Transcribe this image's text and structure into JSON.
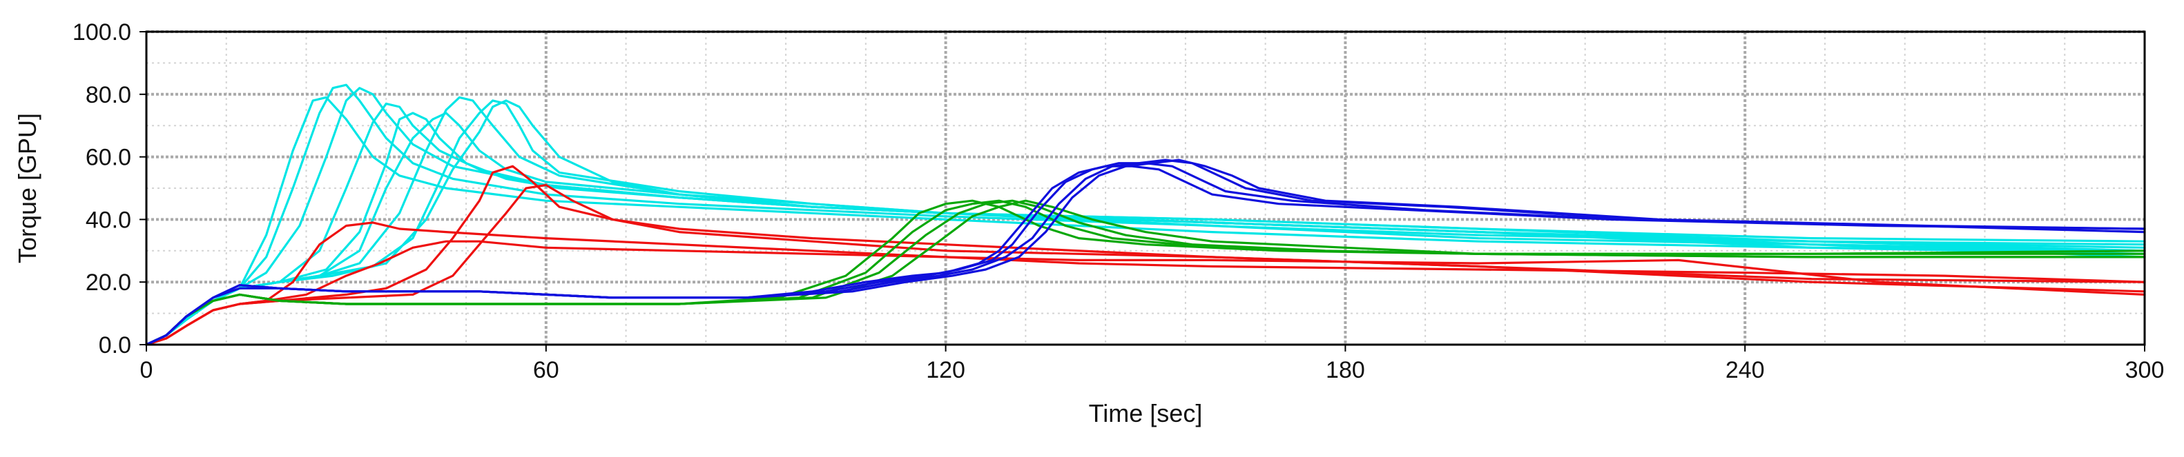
{
  "chart_data": {
    "type": "line",
    "xlabel": "Time [sec]",
    "ylabel": "Torque [GPU]",
    "xlim": [
      0,
      300
    ],
    "ylim": [
      0,
      100
    ],
    "xticks": [
      0,
      60,
      120,
      180,
      240,
      300
    ],
    "yticks": [
      0,
      20,
      40,
      60,
      80,
      100
    ],
    "xtick_labels": [
      "0",
      "60",
      "120",
      "180",
      "240",
      "300"
    ],
    "ytick_labels": [
      "0.0",
      "20.0",
      "40.0",
      "60.0",
      "80.0",
      "100.0"
    ],
    "grid": true,
    "legend": "none",
    "colors": {
      "cyan": "#00e5e5",
      "red": "#ee1111",
      "green": "#0aa80a",
      "blue": "#1010dd",
      "grid_major": "#a9a9a9",
      "grid_minor": "#d4d4d4",
      "frame": "#000000"
    },
    "series": [
      {
        "color": "cyan",
        "x": [
          0,
          3,
          6,
          10,
          14,
          18,
          22,
          25,
          27,
          30,
          34,
          38,
          45,
          60,
          80,
          100,
          120,
          160,
          200,
          250,
          300
        ],
        "y": [
          0,
          3,
          8,
          14,
          18,
          35,
          62,
          78,
          79,
          72,
          60,
          54,
          50,
          46,
          44,
          42,
          40,
          36,
          33,
          31,
          30
        ]
      },
      {
        "color": "cyan",
        "x": [
          0,
          3,
          6,
          10,
          14,
          18,
          22,
          26,
          28,
          30,
          32,
          36,
          40,
          46,
          60,
          80,
          100,
          120,
          160,
          200,
          250,
          300
        ],
        "y": [
          0,
          3,
          8,
          14,
          18,
          28,
          50,
          74,
          82,
          83,
          78,
          66,
          58,
          53,
          48,
          45,
          43,
          41,
          38,
          34,
          32,
          30
        ]
      },
      {
        "color": "cyan",
        "x": [
          0,
          3,
          6,
          10,
          14,
          18,
          23,
          27,
          30,
          32,
          34,
          36,
          40,
          46,
          60,
          80,
          100,
          120,
          160,
          200,
          250,
          300
        ],
        "y": [
          0,
          3,
          8,
          14,
          18,
          23,
          38,
          60,
          78,
          82,
          80,
          74,
          64,
          57,
          51,
          47,
          44,
          42,
          38,
          35,
          33,
          32
        ]
      },
      {
        "color": "cyan",
        "x": [
          0,
          3,
          6,
          10,
          14,
          20,
          26,
          30,
          34,
          36,
          38,
          40,
          44,
          50,
          60,
          80,
          100,
          120,
          160,
          200,
          250,
          300
        ],
        "y": [
          0,
          3,
          8,
          14,
          18,
          20,
          30,
          50,
          71,
          77,
          76,
          70,
          62,
          56,
          51,
          47,
          44,
          42,
          39,
          36,
          33,
          31
        ]
      },
      {
        "color": "cyan",
        "x": [
          0,
          3,
          6,
          10,
          14,
          20,
          27,
          32,
          36,
          38,
          40,
          42,
          44,
          48,
          54,
          62,
          80,
          100,
          120,
          160,
          200,
          250,
          300
        ],
        "y": [
          0,
          3,
          8,
          14,
          18,
          20,
          24,
          36,
          58,
          72,
          74,
          72,
          66,
          58,
          53,
          50,
          47,
          44,
          42,
          39,
          36,
          32,
          30
        ]
      },
      {
        "color": "cyan",
        "x": [
          0,
          3,
          6,
          10,
          14,
          20,
          26,
          32,
          36,
          40,
          43,
          45,
          47,
          50,
          54,
          60,
          80,
          100,
          120,
          160,
          200,
          250,
          300
        ],
        "y": [
          0,
          3,
          8,
          14,
          18,
          20,
          22,
          30,
          50,
          66,
          72,
          74,
          70,
          62,
          56,
          52,
          48,
          44,
          42,
          39,
          36,
          32,
          28
        ]
      },
      {
        "color": "cyan",
        "x": [
          0,
          3,
          6,
          10,
          14,
          20,
          26,
          32,
          38,
          42,
          45,
          47,
          49,
          52,
          56,
          62,
          80,
          100,
          120,
          160,
          200,
          250,
          300
        ],
        "y": [
          0,
          3,
          8,
          14,
          18,
          20,
          22,
          26,
          42,
          62,
          75,
          79,
          78,
          70,
          60,
          54,
          48,
          45,
          42,
          40,
          37,
          33,
          30
        ]
      },
      {
        "color": "cyan",
        "x": [
          0,
          3,
          6,
          10,
          14,
          20,
          26,
          34,
          40,
          44,
          47,
          50,
          52,
          54,
          56,
          58,
          62,
          80,
          100,
          120,
          160,
          200,
          250,
          300
        ],
        "y": [
          0,
          3,
          8,
          14,
          18,
          20,
          22,
          25,
          34,
          52,
          66,
          74,
          78,
          77,
          70,
          62,
          55,
          49,
          45,
          42,
          39,
          36,
          31,
          29
        ]
      },
      {
        "color": "cyan",
        "x": [
          0,
          3,
          6,
          10,
          14,
          20,
          28,
          36,
          42,
          46,
          50,
          52,
          54,
          56,
          58,
          62,
          70,
          80,
          100,
          120,
          160,
          200,
          250,
          300
        ],
        "y": [
          0,
          3,
          8,
          14,
          18,
          20,
          22,
          26,
          40,
          56,
          68,
          76,
          78,
          76,
          70,
          60,
          52,
          48,
          44,
          42,
          40,
          37,
          34,
          33
        ]
      },
      {
        "color": "red",
        "x": [
          0,
          3,
          6,
          10,
          14,
          18,
          22,
          26,
          30,
          34,
          38,
          45,
          60,
          80,
          100,
          120,
          140,
          160,
          200,
          240,
          270,
          300
        ],
        "y": [
          0,
          2,
          6,
          11,
          13,
          14,
          20,
          32,
          38,
          39,
          37,
          36,
          34,
          32,
          30,
          28,
          26,
          25,
          24,
          23,
          22,
          20
        ]
      },
      {
        "color": "red",
        "x": [
          0,
          3,
          6,
          10,
          14,
          18,
          24,
          30,
          35,
          40,
          45,
          50,
          60,
          80,
          100,
          120,
          140,
          160,
          200,
          230,
          260,
          300
        ],
        "y": [
          0,
          2,
          6,
          11,
          13,
          14,
          16,
          22,
          26,
          31,
          33,
          33,
          31,
          30,
          29,
          28,
          27,
          27,
          26,
          27,
          20,
          16
        ]
      },
      {
        "color": "red",
        "x": [
          0,
          3,
          6,
          10,
          14,
          20,
          30,
          36,
          42,
          46,
          50,
          52,
          55,
          58,
          62,
          70,
          80,
          100,
          120,
          160,
          200,
          250,
          300
        ],
        "y": [
          0,
          2,
          6,
          11,
          13,
          14,
          16,
          18,
          24,
          34,
          46,
          55,
          57,
          52,
          44,
          40,
          37,
          34,
          32,
          28,
          25,
          20,
          17
        ]
      },
      {
        "color": "red",
        "x": [
          0,
          3,
          6,
          10,
          14,
          20,
          30,
          40,
          46,
          50,
          54,
          57,
          60,
          64,
          70,
          80,
          100,
          120,
          160,
          200,
          250,
          300
        ],
        "y": [
          0,
          2,
          6,
          11,
          13,
          14,
          15,
          16,
          22,
          32,
          42,
          50,
          51,
          46,
          40,
          36,
          33,
          30,
          28,
          25,
          21,
          20
        ]
      },
      {
        "color": "green",
        "x": [
          0,
          3,
          6,
          10,
          14,
          20,
          30,
          50,
          80,
          95,
          105,
          112,
          116,
          120,
          124,
          128,
          134,
          140,
          150,
          170,
          200,
          250,
          300
        ],
        "y": [
          0,
          3,
          9,
          14,
          16,
          14,
          13,
          13,
          13,
          15,
          22,
          34,
          42,
          45,
          46,
          44,
          38,
          34,
          32,
          30,
          29,
          28,
          28
        ]
      },
      {
        "color": "green",
        "x": [
          0,
          3,
          6,
          10,
          14,
          20,
          30,
          50,
          80,
          98,
          108,
          115,
          120,
          124,
          128,
          132,
          138,
          145,
          155,
          175,
          200,
          250,
          300
        ],
        "y": [
          0,
          3,
          9,
          14,
          16,
          14,
          13,
          13,
          13,
          15,
          23,
          36,
          43,
          45,
          46,
          44,
          38,
          34,
          32,
          30,
          29,
          28,
          28
        ]
      },
      {
        "color": "green",
        "x": [
          0,
          3,
          6,
          10,
          14,
          20,
          30,
          50,
          80,
          100,
          110,
          117,
          122,
          126,
          130,
          134,
          140,
          147,
          157,
          177,
          200,
          250,
          300
        ],
        "y": [
          0,
          3,
          9,
          14,
          16,
          14,
          13,
          13,
          13,
          15,
          23,
          35,
          42,
          45,
          46,
          44,
          39,
          35,
          32,
          30,
          29,
          29,
          29
        ]
      },
      {
        "color": "green",
        "x": [
          0,
          3,
          6,
          10,
          14,
          20,
          30,
          50,
          80,
          102,
          112,
          119,
          124,
          128,
          132,
          136,
          142,
          150,
          160,
          180,
          200,
          250,
          300
        ],
        "y": [
          0,
          3,
          9,
          14,
          16,
          14,
          13,
          13,
          13,
          15,
          22,
          33,
          41,
          44,
          46,
          44,
          40,
          36,
          33,
          31,
          29,
          29,
          30
        ]
      },
      {
        "color": "blue",
        "x": [
          0,
          3,
          6,
          10,
          14,
          20,
          30,
          50,
          70,
          90,
          100,
          108,
          115,
          120,
          125,
          128,
          132,
          136,
          140,
          144,
          148,
          152,
          156,
          160,
          170,
          190,
          220,
          260,
          300
        ],
        "y": [
          0,
          3,
          9,
          15,
          18,
          18,
          17,
          17,
          15,
          15,
          17,
          20,
          22,
          23,
          26,
          30,
          40,
          50,
          55,
          57,
          57,
          56,
          52,
          48,
          45,
          43,
          40,
          38,
          37
        ]
      },
      {
        "color": "blue",
        "x": [
          0,
          3,
          6,
          10,
          14,
          20,
          30,
          50,
          70,
          90,
          102,
          110,
          117,
          122,
          127,
          130,
          134,
          138,
          142,
          146,
          150,
          154,
          158,
          162,
          172,
          192,
          222,
          262,
          300
        ],
        "y": [
          0,
          3,
          9,
          15,
          19,
          18,
          17,
          17,
          15,
          15,
          17,
          20,
          22,
          24,
          27,
          32,
          43,
          52,
          56,
          58,
          58,
          57,
          53,
          49,
          46,
          43,
          40,
          38,
          37
        ]
      },
      {
        "color": "blue",
        "x": [
          0,
          3,
          6,
          10,
          14,
          20,
          30,
          50,
          70,
          90,
          104,
          112,
          119,
          124,
          129,
          133,
          137,
          141,
          145,
          149,
          153,
          157,
          161,
          165,
          175,
          195,
          225,
          265,
          300
        ],
        "y": [
          0,
          3,
          9,
          15,
          19,
          18,
          17,
          17,
          15,
          15,
          17,
          20,
          22,
          24,
          28,
          34,
          45,
          53,
          57,
          58,
          59,
          58,
          54,
          50,
          46,
          44,
          40,
          38,
          36
        ]
      },
      {
        "color": "blue",
        "x": [
          0,
          3,
          6,
          10,
          14,
          20,
          30,
          50,
          70,
          90,
          106,
          114,
          121,
          126,
          131,
          135,
          139,
          143,
          147,
          151,
          155,
          159,
          163,
          167,
          177,
          197,
          227,
          267,
          300
        ],
        "y": [
          0,
          3,
          9,
          15,
          19,
          18,
          17,
          17,
          15,
          15,
          17,
          20,
          22,
          24,
          28,
          36,
          47,
          54,
          57,
          58,
          59,
          57,
          54,
          50,
          46,
          44,
          40,
          38,
          37
        ]
      }
    ]
  }
}
